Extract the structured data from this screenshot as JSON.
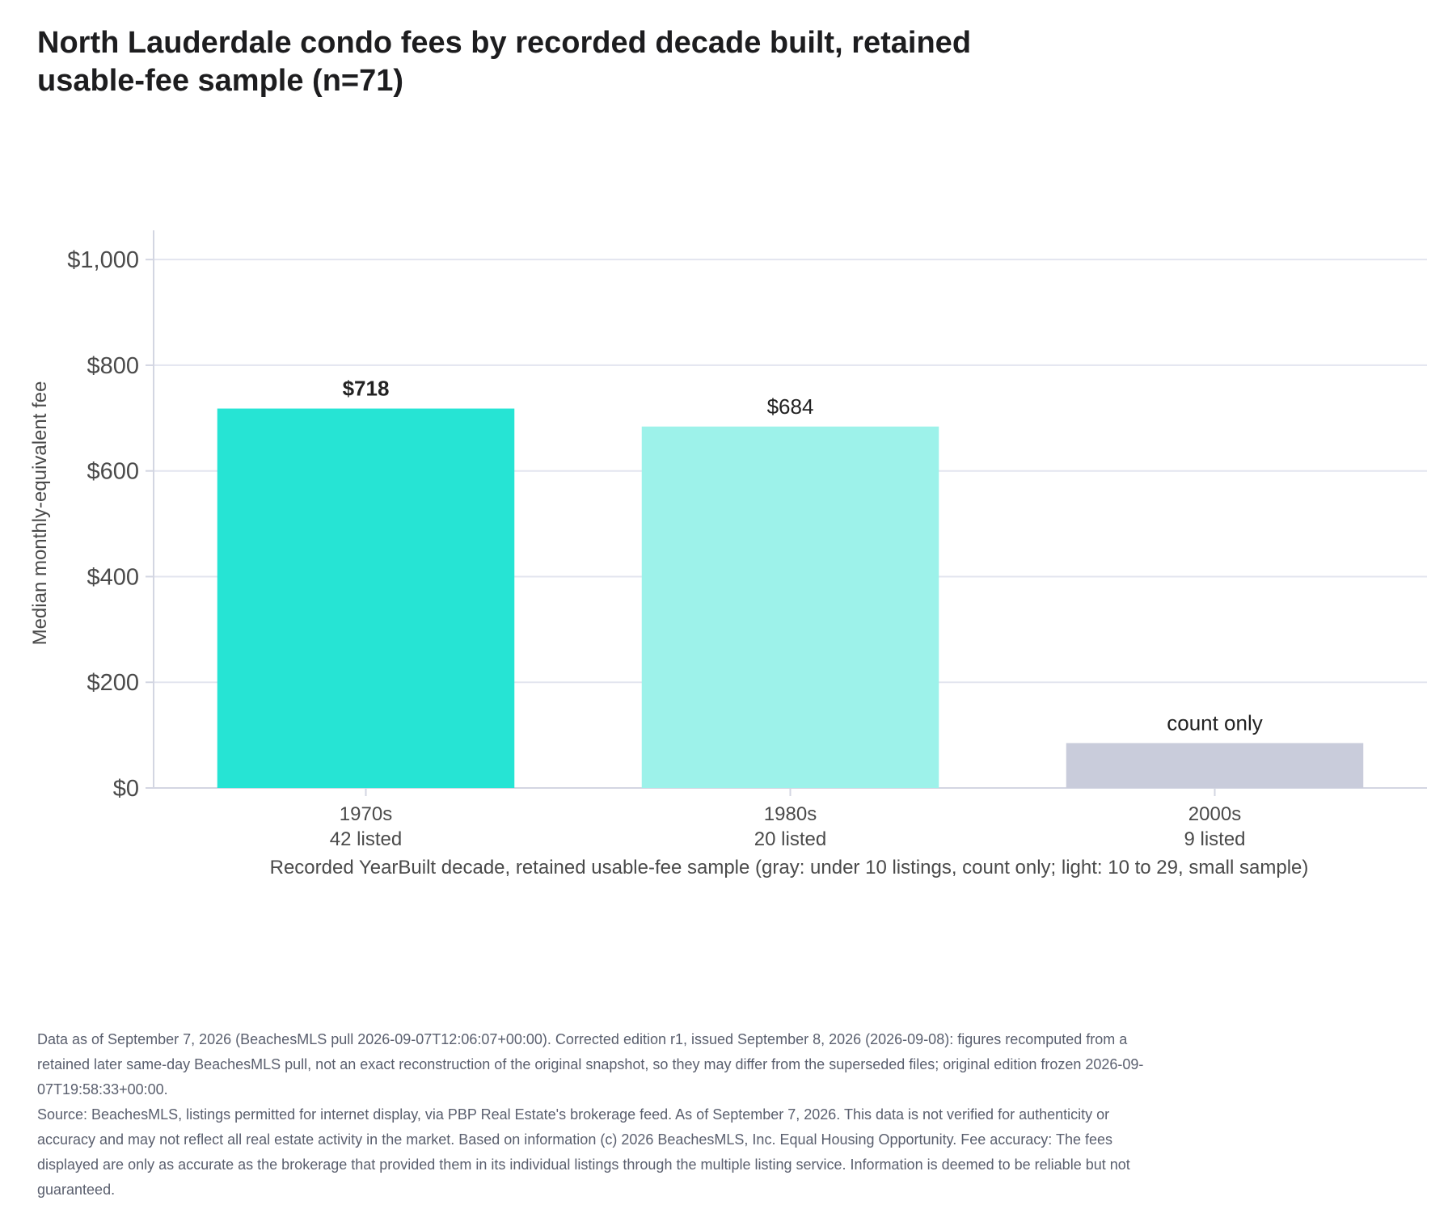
{
  "chart_data": {
    "type": "bar",
    "title": "North Lauderdale condo fees by recorded decade built, retained usable-fee sample (n=71)",
    "xlabel": "Recorded YearBuilt decade, retained usable-fee sample (gray: under 10 listings, count only; light: 10 to 29, small sample)",
    "ylabel": "Median monthly-equivalent fee",
    "ylim": [
      0,
      1040
    ],
    "yticks": [
      0,
      200,
      400,
      600,
      800,
      1000
    ],
    "ytick_labels": [
      "$0",
      "$200",
      "$400",
      "$600",
      "$800",
      "$1,000"
    ],
    "grid": true,
    "categories": [
      "1970s",
      "1980s",
      "2000s"
    ],
    "counts": [
      "42 listed",
      "20 listed",
      "9 listed"
    ],
    "values": [
      718,
      684,
      null
    ],
    "count_only_bar_height": 85,
    "data_labels": [
      "$718",
      "$684",
      "count only"
    ],
    "bar_colors": [
      "#26e4d4",
      "#9df2ea",
      "#c9ccdb"
    ],
    "label_bold": [
      true,
      false,
      false
    ],
    "label_colors": [
      "#222222",
      "#222222",
      "#555555"
    ],
    "grid_color": "#e3e5ef",
    "axis_color": "#d3d6e2"
  },
  "footnotes": {
    "edition": "Data as of September 7, 2026 (BeachesMLS pull 2026-09-07T12:06:07+00:00). Corrected edition r1, issued September 8, 2026 (2026-09-08): figures recomputed from a retained later same-day BeachesMLS pull, not an exact reconstruction of the original snapshot, so they may differ from the superseded files; original edition frozen 2026-09-07T19:58:33+00:00.",
    "source": "Source: BeachesMLS, listings permitted for internet display, via PBP Real Estate's brokerage feed. As of September 7, 2026. This data is not verified for authenticity or accuracy and may not reflect all real estate activity in the market. Based on information (c) 2026 BeachesMLS, Inc. Equal Housing Opportunity. Fee accuracy: The fees displayed are only as accurate as the brokerage that provided them in its individual listings through the multiple listing service. Information is deemed to be reliable but not guaranteed."
  }
}
